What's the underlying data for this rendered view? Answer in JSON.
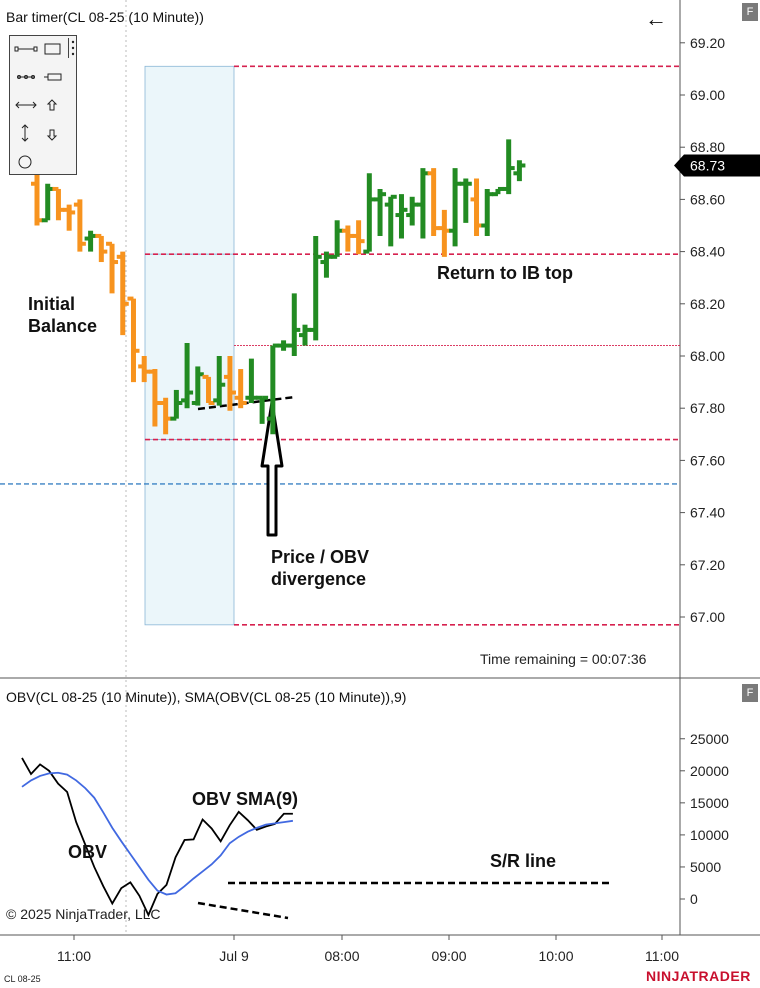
{
  "price_panel": {
    "title": "Bar timer(CL 08-25 (10 Minute))",
    "last_price": "68.73",
    "time_remaining": "Time remaining = 00:07:36",
    "annotations": {
      "initial_balance_1": "Initial",
      "initial_balance_2": "Balance",
      "return": "Return to IB top",
      "divergence_1": "Price / OBV",
      "divergence_2": "divergence"
    }
  },
  "obv_panel": {
    "title": "OBV(CL 08-25 (10 Minute)), SMA(OBV(CL 08-25 (10 Minute)),9)",
    "annotations": {
      "obv": "OBV",
      "sma": "OBV SMA(9)",
      "sr": "S/R line"
    }
  },
  "toolbar_icons": [
    "line-tool-icon",
    "rectangle-tool-icon",
    "ray-tool-icon",
    "ruler-tool-icon",
    "extended-line-icon",
    "arrow-up-icon",
    "vertical-line-icon",
    "arrow-down-icon",
    "ellipse-tool-icon"
  ],
  "copyright": "© 2025 NinjaTrader, LLC",
  "instrument_short": "CL 08-25",
  "brand": "NINJATRADER",
  "colors": {
    "up": "#228b22",
    "down": "#f7931e",
    "ib_line": "#d6224f",
    "ib_box": "#ebf6fa",
    "ib_box_border": "#8ab6d6",
    "blue_line": "#3b82c4",
    "sma_line": "#4169e1",
    "obv_line": "#000000",
    "last_price_bg": "#000000"
  },
  "chart_data": [
    {
      "type": "bar",
      "ohlc": true,
      "y_axis": {
        "range": [
          66.8,
          69.35
        ],
        "ticks": [
          "69.20",
          "69.00",
          "68.80",
          "68.60",
          "68.40",
          "68.20",
          "68.00",
          "67.80",
          "67.60",
          "67.40",
          "67.20",
          "67.00"
        ]
      },
      "x_axis": {
        "ticks": [
          "11:00",
          "Jul 9",
          "08:00",
          "09:00",
          "10:00",
          "11:00"
        ]
      },
      "bars": [
        {
          "o": 68.66,
          "h": 68.75,
          "l": 68.5,
          "c": 68.52
        },
        {
          "o": 68.52,
          "h": 68.66,
          "l": 68.52,
          "c": 68.64
        },
        {
          "o": 68.64,
          "h": 68.64,
          "l": 68.52,
          "c": 68.56
        },
        {
          "o": 68.56,
          "h": 68.58,
          "l": 68.48,
          "c": 68.55
        },
        {
          "o": 68.58,
          "h": 68.6,
          "l": 68.4,
          "c": 68.43
        },
        {
          "o": 68.45,
          "h": 68.48,
          "l": 68.4,
          "c": 68.46
        },
        {
          "o": 68.46,
          "h": 68.46,
          "l": 68.36,
          "c": 68.4
        },
        {
          "o": 68.43,
          "h": 68.43,
          "l": 68.24,
          "c": 68.36
        },
        {
          "o": 68.38,
          "h": 68.4,
          "l": 68.08,
          "c": 68.2
        },
        {
          "o": 68.22,
          "h": 68.22,
          "l": 67.9,
          "c": 68.02
        },
        {
          "o": 67.96,
          "h": 68.0,
          "l": 67.9,
          "c": 67.94
        },
        {
          "o": 67.94,
          "h": 67.95,
          "l": 67.73,
          "c": 67.82
        },
        {
          "o": 67.82,
          "h": 67.84,
          "l": 67.7,
          "c": 67.76
        },
        {
          "o": 67.76,
          "h": 67.87,
          "l": 67.76,
          "c": 67.82
        },
        {
          "o": 67.83,
          "h": 68.05,
          "l": 67.8,
          "c": 67.86
        },
        {
          "o": 67.82,
          "h": 67.96,
          "l": 67.81,
          "c": 67.93
        },
        {
          "o": 67.92,
          "h": 67.92,
          "l": 67.82,
          "c": 67.82
        },
        {
          "o": 67.83,
          "h": 68.0,
          "l": 67.81,
          "c": 67.89
        },
        {
          "o": 67.92,
          "h": 68.0,
          "l": 67.79,
          "c": 67.86
        },
        {
          "o": 67.84,
          "h": 67.95,
          "l": 67.8,
          "c": 67.82
        },
        {
          "o": 67.84,
          "h": 67.99,
          "l": 67.82,
          "c": 67.84
        },
        {
          "o": 67.84,
          "h": 67.84,
          "l": 67.74,
          "c": 67.84
        },
        {
          "o": 67.76,
          "h": 68.04,
          "l": 67.7,
          "c": 68.04
        },
        {
          "o": 68.04,
          "h": 68.06,
          "l": 68.02,
          "c": 68.04
        },
        {
          "o": 68.04,
          "h": 68.24,
          "l": 68.0,
          "c": 68.1
        },
        {
          "o": 68.08,
          "h": 68.12,
          "l": 68.04,
          "c": 68.1
        },
        {
          "o": 68.1,
          "h": 68.46,
          "l": 68.06,
          "c": 68.38
        },
        {
          "o": 68.36,
          "h": 68.4,
          "l": 68.3,
          "c": 68.38
        },
        {
          "o": 68.38,
          "h": 68.52,
          "l": 68.38,
          "c": 68.48
        },
        {
          "o": 68.48,
          "h": 68.5,
          "l": 68.4,
          "c": 68.46
        },
        {
          "o": 68.46,
          "h": 68.52,
          "l": 68.39,
          "c": 68.44
        },
        {
          "o": 68.4,
          "h": 68.7,
          "l": 68.4,
          "c": 68.6
        },
        {
          "o": 68.6,
          "h": 68.64,
          "l": 68.46,
          "c": 68.62
        },
        {
          "o": 68.58,
          "h": 68.61,
          "l": 68.42,
          "c": 68.61
        },
        {
          "o": 68.54,
          "h": 68.62,
          "l": 68.45,
          "c": 68.56
        },
        {
          "o": 68.54,
          "h": 68.61,
          "l": 68.5,
          "c": 68.58
        },
        {
          "o": 68.58,
          "h": 68.72,
          "l": 68.45,
          "c": 68.7
        },
        {
          "o": 68.7,
          "h": 68.72,
          "l": 68.46,
          "c": 68.49
        },
        {
          "o": 68.49,
          "h": 68.56,
          "l": 68.38,
          "c": 68.48
        },
        {
          "o": 68.48,
          "h": 68.72,
          "l": 68.42,
          "c": 68.66
        },
        {
          "o": 68.66,
          "h": 68.68,
          "l": 68.51,
          "c": 68.66
        },
        {
          "o": 68.6,
          "h": 68.68,
          "l": 68.46,
          "c": 68.5
        },
        {
          "o": 68.5,
          "h": 68.64,
          "l": 68.46,
          "c": 68.62
        },
        {
          "o": 68.62,
          "h": 68.64,
          "l": 68.62,
          "c": 68.64
        },
        {
          "o": 68.64,
          "h": 68.83,
          "l": 68.62,
          "c": 68.72
        },
        {
          "o": 68.7,
          "h": 68.75,
          "l": 68.67,
          "c": 68.73
        }
      ],
      "levels": {
        "ib_high": 68.39,
        "ib_low": 67.68,
        "upper_red": 69.11,
        "lower_red": 66.97,
        "thin_red": 68.04,
        "blue_dashed": 67.51
      }
    },
    {
      "type": "line",
      "y_axis": {
        "range": [
          -5500,
          27000
        ],
        "ticks": [
          "25000",
          "20000",
          "15000",
          "10000",
          "5000",
          "0"
        ]
      },
      "series": [
        {
          "name": "OBV",
          "values": [
            22000,
            19500,
            21000,
            20000,
            18000,
            16700,
            12000,
            8500,
            5000,
            2000,
            -700,
            1700,
            2600,
            500,
            -2500,
            800,
            2200,
            6500,
            9200,
            9300,
            12400,
            11000,
            9000,
            11500,
            13600,
            12300,
            10800,
            11300,
            11700,
            13300,
            13300
          ]
        },
        {
          "name": "OBV SMA(9)",
          "values": [
            17500,
            18500,
            19200,
            19600,
            19700,
            19400,
            18500,
            17300,
            15800,
            13500,
            11100,
            9000,
            7000,
            5000,
            3000,
            1300,
            700,
            900,
            2000,
            3200,
            4300,
            5400,
            6800,
            8700,
            9700,
            10500,
            11100,
            11600,
            11800,
            12000,
            12200
          ]
        }
      ],
      "sr_line": 2500
    }
  ]
}
